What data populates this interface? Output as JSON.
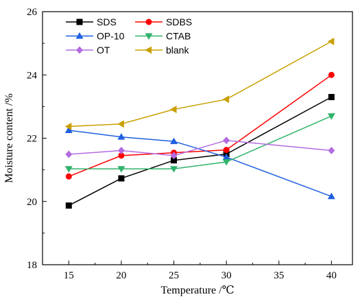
{
  "chart_data": {
    "type": "line",
    "title": "",
    "xlabel": "Temperature /℃",
    "ylabel": "Moisture content /%",
    "x": [
      15,
      20,
      25,
      30,
      40
    ],
    "xlim": [
      12.5,
      42
    ],
    "ylim": [
      18,
      26
    ],
    "xticks": [
      15,
      20,
      25,
      30,
      35,
      40
    ],
    "yticks": [
      18,
      20,
      22,
      24,
      26
    ],
    "grid": false,
    "legend_position": "top-left",
    "series": [
      {
        "name": "SDS",
        "color": "#000000",
        "marker": "square",
        "values": [
          19.87,
          20.73,
          21.3,
          21.5,
          23.3
        ]
      },
      {
        "name": "SDBS",
        "color": "#ff0000",
        "marker": "circle",
        "values": [
          20.79,
          21.45,
          21.54,
          21.63,
          24.0
        ]
      },
      {
        "name": "OP-10",
        "color": "#1f5fe0",
        "marker": "triangle-up",
        "values": [
          22.25,
          22.04,
          21.9,
          21.4,
          20.16
        ]
      },
      {
        "name": "CTAB",
        "color": "#2fb36a",
        "marker": "triangle-down",
        "values": [
          21.03,
          21.03,
          21.03,
          21.25,
          22.7
        ]
      },
      {
        "name": "OT",
        "color": "#b36be0",
        "marker": "diamond",
        "values": [
          21.49,
          21.61,
          21.45,
          21.93,
          21.61
        ]
      },
      {
        "name": "blank",
        "color": "#c8a000",
        "marker": "triangle-left",
        "values": [
          22.37,
          22.45,
          22.91,
          23.23,
          25.06
        ]
      }
    ]
  }
}
